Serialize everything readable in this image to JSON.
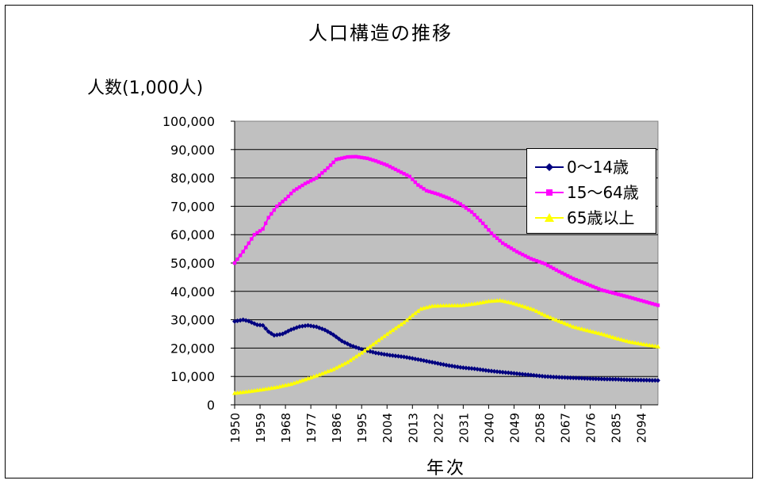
{
  "chart_data": {
    "type": "line",
    "title": "人口構造の推移",
    "ylabel": "人数(1,000人)",
    "xlabel": "年次",
    "ylim": [
      0,
      100000
    ],
    "xlim": [
      1950,
      2100
    ],
    "y_ticks": [
      "0",
      "10,000",
      "20,000",
      "30,000",
      "40,000",
      "50,000",
      "60,000",
      "70,000",
      "80,000",
      "90,000",
      "100,000"
    ],
    "x_ticks": [
      "1950",
      "1959",
      "1968",
      "1977",
      "1986",
      "1995",
      "2004",
      "2013",
      "2022",
      "2031",
      "2040",
      "2049",
      "2058",
      "2067",
      "2076",
      "2085",
      "2094"
    ],
    "grid": "horizontal",
    "legend_position": "right",
    "plot_background": "#c0c0c0",
    "series": [
      {
        "name": "0～14歳",
        "color": "#000080",
        "marker": "diamond",
        "points": [
          [
            1950,
            29400
          ],
          [
            1953,
            30000
          ],
          [
            1955,
            29500
          ],
          [
            1958,
            28200
          ],
          [
            1960,
            28000
          ],
          [
            1962,
            25800
          ],
          [
            1964,
            24500
          ],
          [
            1967,
            25000
          ],
          [
            1970,
            26500
          ],
          [
            1973,
            27600
          ],
          [
            1976,
            28000
          ],
          [
            1979,
            27500
          ],
          [
            1982,
            26400
          ],
          [
            1985,
            24700
          ],
          [
            1988,
            22500
          ],
          [
            1991,
            21000
          ],
          [
            1995,
            19600
          ],
          [
            2000,
            18300
          ],
          [
            2005,
            17500
          ],
          [
            2010,
            16900
          ],
          [
            2015,
            16000
          ],
          [
            2020,
            15000
          ],
          [
            2025,
            14000
          ],
          [
            2030,
            13200
          ],
          [
            2035,
            12700
          ],
          [
            2040,
            12000
          ],
          [
            2045,
            11500
          ],
          [
            2050,
            11000
          ],
          [
            2055,
            10500
          ],
          [
            2060,
            10000
          ],
          [
            2065,
            9700
          ],
          [
            2070,
            9500
          ],
          [
            2075,
            9300
          ],
          [
            2080,
            9100
          ],
          [
            2085,
            9000
          ],
          [
            2090,
            8800
          ],
          [
            2095,
            8700
          ],
          [
            2100,
            8600
          ]
        ]
      },
      {
        "name": "15～64歳",
        "color": "#ff00ff",
        "marker": "square",
        "points": [
          [
            1950,
            50000
          ],
          [
            1953,
            54000
          ],
          [
            1955,
            57000
          ],
          [
            1957,
            60000
          ],
          [
            1960,
            62000
          ],
          [
            1962,
            66000
          ],
          [
            1965,
            70000
          ],
          [
            1968,
            72500
          ],
          [
            1971,
            75500
          ],
          [
            1975,
            78000
          ],
          [
            1979,
            80000
          ],
          [
            1983,
            83500
          ],
          [
            1986,
            86500
          ],
          [
            1990,
            87400
          ],
          [
            1993,
            87500
          ],
          [
            1997,
            86900
          ],
          [
            2000,
            86000
          ],
          [
            2004,
            84500
          ],
          [
            2008,
            82500
          ],
          [
            2012,
            80500
          ],
          [
            2015,
            77500
          ],
          [
            2018,
            75500
          ],
          [
            2022,
            74300
          ],
          [
            2026,
            72800
          ],
          [
            2030,
            70800
          ],
          [
            2034,
            68000
          ],
          [
            2038,
            64000
          ],
          [
            2041,
            60500
          ],
          [
            2045,
            57000
          ],
          [
            2050,
            54000
          ],
          [
            2055,
            51500
          ],
          [
            2060,
            49700
          ],
          [
            2065,
            47000
          ],
          [
            2070,
            44500
          ],
          [
            2075,
            42500
          ],
          [
            2080,
            40500
          ],
          [
            2085,
            39200
          ],
          [
            2090,
            37900
          ],
          [
            2095,
            36500
          ],
          [
            2100,
            35100
          ]
        ]
      },
      {
        "name": "65歳以上",
        "color": "#ffff00",
        "marker": "triangle",
        "points": [
          [
            1950,
            4100
          ],
          [
            1955,
            4700
          ],
          [
            1960,
            5400
          ],
          [
            1965,
            6200
          ],
          [
            1970,
            7300
          ],
          [
            1975,
            8900
          ],
          [
            1980,
            10600
          ],
          [
            1985,
            12500
          ],
          [
            1990,
            15000
          ],
          [
            1995,
            18300
          ],
          [
            2000,
            22000
          ],
          [
            2005,
            25600
          ],
          [
            2010,
            29000
          ],
          [
            2013,
            31500
          ],
          [
            2016,
            33800
          ],
          [
            2020,
            34800
          ],
          [
            2025,
            35000
          ],
          [
            2030,
            35000
          ],
          [
            2035,
            35600
          ],
          [
            2040,
            36500
          ],
          [
            2044,
            36800
          ],
          [
            2048,
            36000
          ],
          [
            2052,
            34800
          ],
          [
            2056,
            33500
          ],
          [
            2060,
            31500
          ],
          [
            2065,
            29500
          ],
          [
            2070,
            27500
          ],
          [
            2075,
            26200
          ],
          [
            2080,
            25000
          ],
          [
            2085,
            23500
          ],
          [
            2090,
            22200
          ],
          [
            2095,
            21300
          ],
          [
            2100,
            20500
          ]
        ]
      }
    ]
  }
}
